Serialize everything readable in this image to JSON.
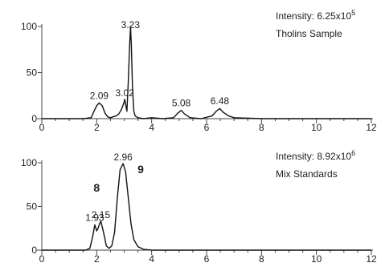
{
  "chart_data": [
    {
      "type": "line",
      "title": "",
      "xlabel": "",
      "ylabel": "",
      "xlim": [
        0,
        12
      ],
      "ylim": [
        0,
        100
      ],
      "x_ticks": [
        0,
        2,
        4,
        6,
        8,
        10,
        12
      ],
      "y_ticks": [
        0,
        50,
        100
      ],
      "intensity_text": "Intensity: 6.25x10",
      "intensity_exponent": "5",
      "sample_label": "Tholins Sample",
      "peak_labels": [
        {
          "text": "2.09",
          "x": 2.09,
          "y": 18
        },
        {
          "text": "3.02",
          "x": 3.02,
          "y": 21
        },
        {
          "text": "3.23",
          "x": 3.23,
          "y": 95
        },
        {
          "text": "5.08",
          "x": 5.08,
          "y": 10
        },
        {
          "text": "6.48",
          "x": 6.48,
          "y": 12
        }
      ],
      "compound_labels": [],
      "series": [
        {
          "x": [
            0,
            1.5,
            1.8,
            1.9,
            2.0,
            2.09,
            2.2,
            2.3,
            2.4,
            2.5,
            2.6,
            2.7,
            2.8,
            2.9,
            3.0,
            3.02,
            3.06,
            3.1,
            3.15,
            3.2,
            3.23,
            3.26,
            3.3,
            3.35,
            3.4,
            3.5,
            3.7,
            4.0,
            4.4,
            4.8,
            4.95,
            5.08,
            5.2,
            5.4,
            5.8,
            6.2,
            6.35,
            6.48,
            6.6,
            6.8,
            7.0,
            8.0,
            10.0,
            12.0
          ],
          "y": [
            0,
            0,
            1,
            8,
            14,
            17,
            14,
            6,
            2,
            1,
            2,
            3,
            5,
            10,
            18,
            21,
            14,
            8,
            40,
            80,
            100,
            80,
            35,
            8,
            3,
            1,
            0,
            1,
            0,
            1,
            6,
            9,
            5,
            1,
            0,
            3,
            8,
            11,
            7,
            3,
            1,
            0,
            0,
            0
          ]
        }
      ]
    },
    {
      "type": "line",
      "title": "",
      "xlabel": "",
      "ylabel": "",
      "xlim": [
        0,
        12
      ],
      "ylim": [
        0,
        100
      ],
      "x_ticks": [
        0,
        2,
        4,
        6,
        8,
        10,
        12
      ],
      "y_ticks": [
        0,
        50,
        100
      ],
      "intensity_text": "Intensity: 8.92x10",
      "intensity_exponent": "6",
      "sample_label": "Mix Standards",
      "peak_labels": [
        {
          "text": "1.93",
          "x": 1.93,
          "y": 30
        },
        {
          "text": "2.15",
          "x": 2.15,
          "y": 33
        },
        {
          "text": "2.96",
          "x": 2.96,
          "y": 99
        }
      ],
      "compound_labels": [
        {
          "text": "8",
          "x": 2.0,
          "y": 67
        },
        {
          "text": "9",
          "x": 3.6,
          "y": 88
        }
      ],
      "series": [
        {
          "x": [
            0,
            1.6,
            1.75,
            1.85,
            1.93,
            2.0,
            2.05,
            2.1,
            2.15,
            2.25,
            2.35,
            2.45,
            2.55,
            2.65,
            2.75,
            2.85,
            2.96,
            3.05,
            3.15,
            3.25,
            3.35,
            3.5,
            3.7,
            4.0,
            6.0,
            8.0,
            10.0,
            12.0
          ],
          "y": [
            0,
            0,
            2,
            15,
            29,
            22,
            25,
            30,
            33,
            20,
            5,
            2,
            5,
            20,
            60,
            92,
            99,
            90,
            60,
            30,
            12,
            4,
            1,
            0,
            0,
            0,
            0,
            0
          ]
        }
      ]
    }
  ]
}
